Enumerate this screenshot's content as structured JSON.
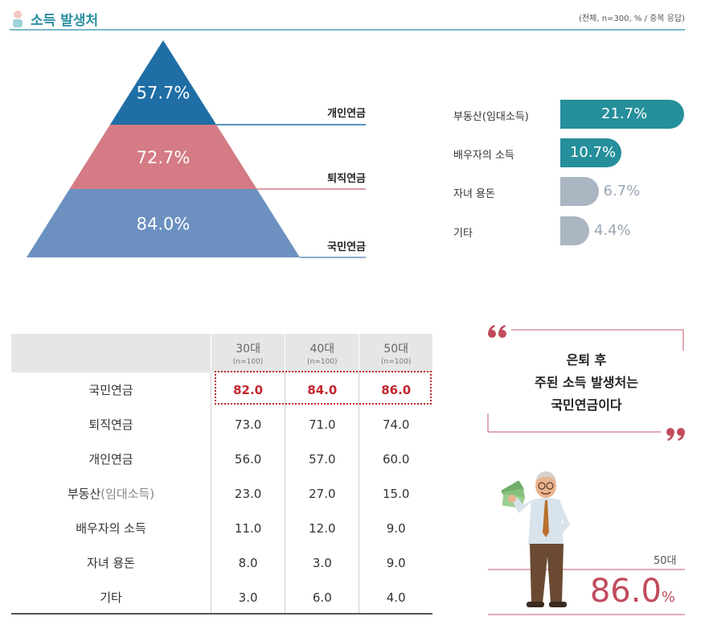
{
  "header": {
    "title": "소득 발생처",
    "note": "(전체, n=300, % / 중복 응답)"
  },
  "chart_data": [
    {
      "type": "pyramid",
      "categories": [
        "개인연금",
        "퇴직연금",
        "국민연금"
      ],
      "values": [
        57.7,
        72.7,
        84.0
      ],
      "value_labels": [
        "57.7%",
        "72.7%",
        "84.0%"
      ],
      "colors": [
        "#1f6ea5",
        "#d47b85",
        "#6c91c1"
      ]
    },
    {
      "type": "bar",
      "orientation": "horizontal",
      "categories": [
        "부동산(임대소득)",
        "배우자의 소득",
        "자녀 용돈",
        "기타"
      ],
      "values": [
        21.7,
        10.7,
        6.7,
        4.4
      ],
      "value_labels": [
        "21.7%",
        "10.7%",
        "6.7%",
        "4.4%"
      ],
      "colors": [
        "#258f9b",
        "#258f9b",
        "#aab6c2",
        "#aab6c2"
      ]
    },
    {
      "type": "table",
      "columns": [
        {
          "label": "30대",
          "n": "(n=100)"
        },
        {
          "label": "40대",
          "n": "(n=100)"
        },
        {
          "label": "50대",
          "n": "(n=100)"
        }
      ],
      "rows": [
        {
          "label": "국민연금",
          "values": [
            "82.0",
            "84.0",
            "86.0"
          ],
          "highlight": true
        },
        {
          "label": "퇴직연금",
          "values": [
            "73.0",
            "71.0",
            "74.0"
          ]
        },
        {
          "label": "개인연금",
          "values": [
            "56.0",
            "57.0",
            "60.0"
          ]
        },
        {
          "label": "부동산",
          "label_sub": "(임대소득)",
          "values": [
            "23.0",
            "27.0",
            "15.0"
          ]
        },
        {
          "label": "배우자의 소득",
          "values": [
            "11.0",
            "12.0",
            "9.0"
          ]
        },
        {
          "label": "자녀 용돈",
          "values": [
            "8.0",
            "3.0",
            "9.0"
          ]
        },
        {
          "label": "기타",
          "values": [
            "3.0",
            "6.0",
            "4.0"
          ]
        }
      ]
    }
  ],
  "callout": {
    "lines": [
      "은퇴 후",
      "주된 소득 발생처는",
      "국민연금이다"
    ],
    "age": "50대",
    "value": "86.0",
    "unit": "%"
  }
}
